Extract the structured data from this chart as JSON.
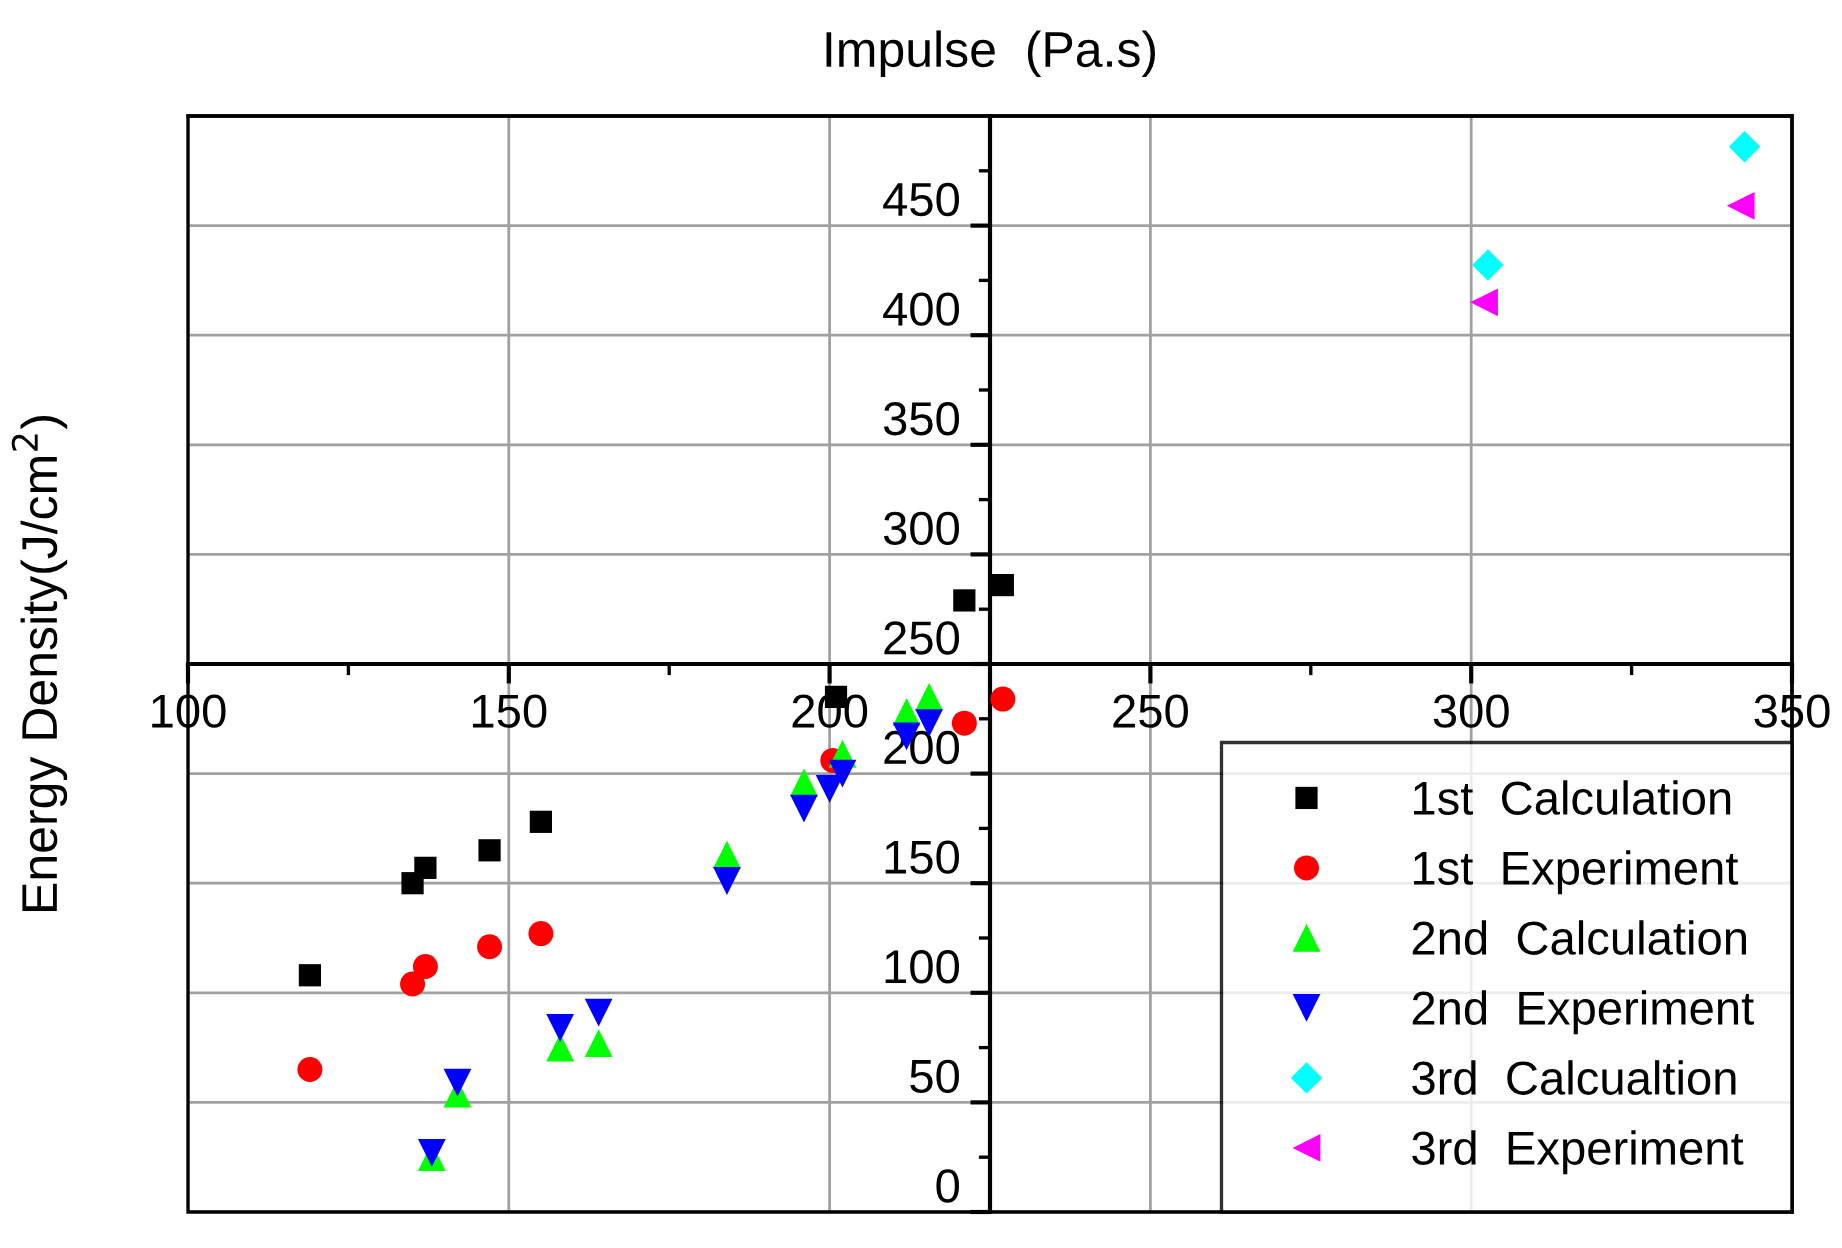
{
  "chart_data": {
    "type": "scatter",
    "xlabel": "Impulse  (Pa.s)",
    "ylabel": "Energy Density(J/cm$^{2}$)",
    "xlim": [
      100,
      350
    ],
    "ylim": [
      0,
      500
    ],
    "xticks": [
      100,
      150,
      200,
      250,
      300,
      350
    ],
    "yticks": [
      0,
      50,
      100,
      150,
      200,
      250,
      300,
      350,
      400,
      450
    ],
    "grid": true,
    "legend": "bottom right",
    "series": [
      {
        "name": "1st  Calculation",
        "color": "#000000",
        "marker": "square",
        "x": [
          119,
          135,
          137,
          147,
          155,
          201,
          221,
          227
        ],
        "values": [
          108,
          150,
          157,
          165,
          178,
          235,
          279,
          286
        ]
      },
      {
        "name": "1st  Experiment",
        "color": "#ff0000",
        "marker": "circle",
        "x": [
          119,
          135,
          137,
          147,
          155,
          200.5,
          221,
          227
        ],
        "values": [
          65,
          104,
          112,
          121,
          127,
          206,
          223,
          234
        ]
      },
      {
        "name": "2nd  Calculation",
        "color": "#00ff00",
        "marker": "triangle",
        "x": [
          138,
          142,
          158,
          164,
          184,
          196,
          202,
          212,
          215.5
        ],
        "values": [
          25,
          54,
          75,
          77,
          163,
          196,
          209,
          228,
          235
        ]
      },
      {
        "name": "2nd  Experiment",
        "color": "#0000ff",
        "marker": "triangle_down",
        "x": [
          138,
          142,
          158,
          164,
          184,
          196,
          200,
          202,
          212,
          215.5
        ],
        "values": [
          27,
          59,
          84,
          91,
          151,
          184,
          193,
          200,
          217,
          223
        ]
      },
      {
        "name": "3rd  Calcualtion",
        "color": "#00ffff",
        "marker": "diamond",
        "x": [
          302.6,
          342.6
        ],
        "values": [
          432,
          486
        ]
      },
      {
        "name": "3rd  Experiment",
        "color": "#ff00ff",
        "marker": "triangle_left",
        "x": [
          302,
          342
        ],
        "values": [
          415,
          459
        ]
      }
    ]
  }
}
